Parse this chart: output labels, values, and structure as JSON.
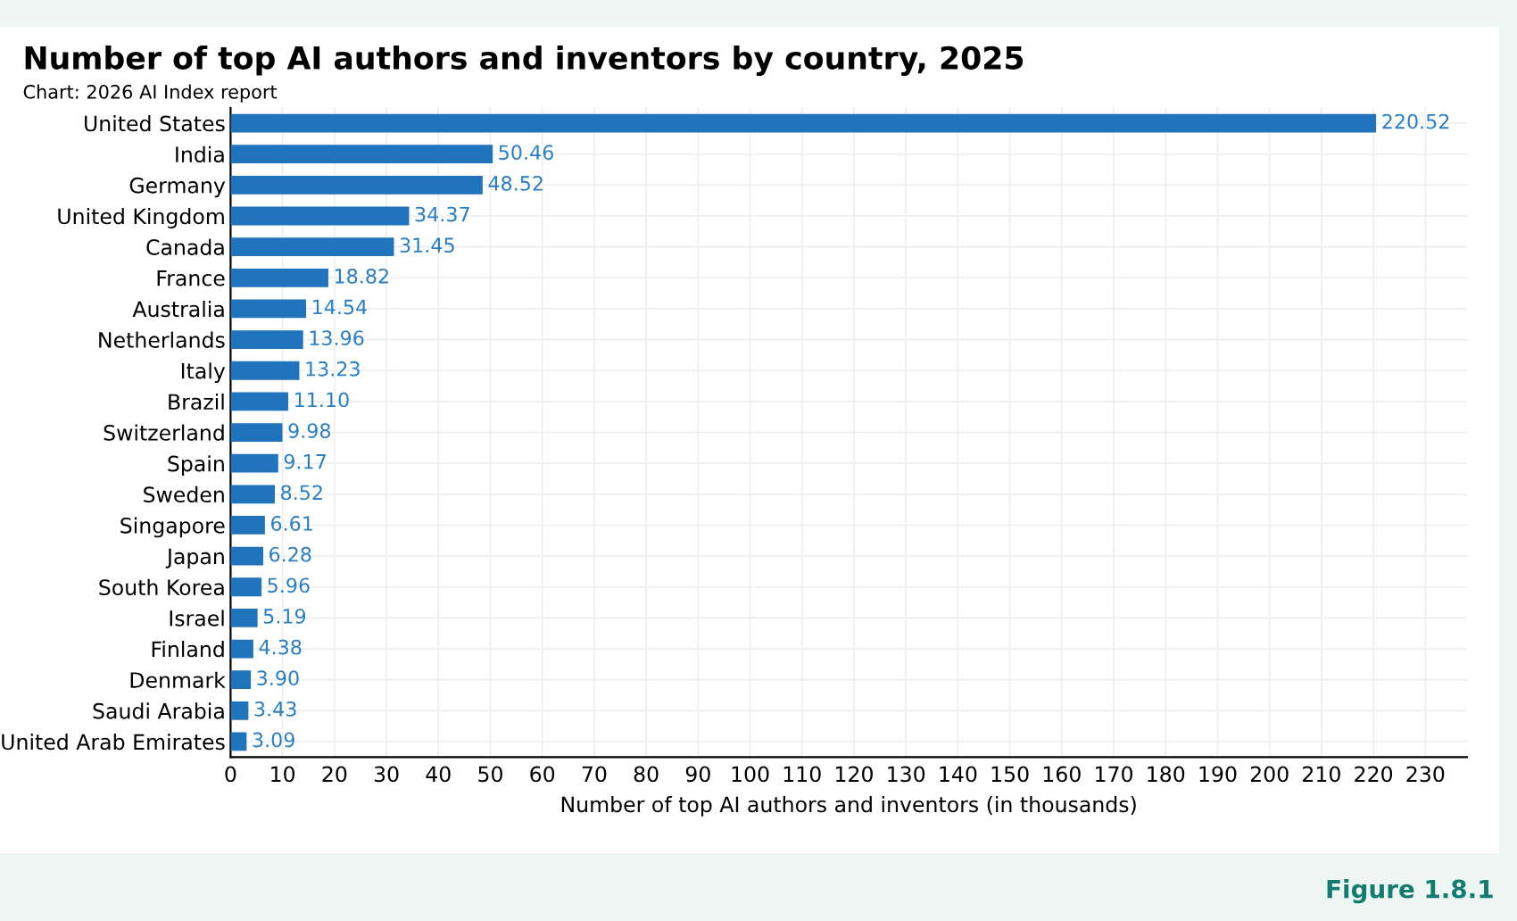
{
  "chart_data": {
    "type": "bar",
    "orientation": "horizontal",
    "title": "Number of top AI authors and inventors by country, 2025",
    "subtitle": "Chart: 2026 AI Index report",
    "xlabel": "Number of top AI authors and inventors (in thousands)",
    "categories": [
      "United States",
      "India",
      "Germany",
      "United Kingdom",
      "Canada",
      "France",
      "Australia",
      "Netherlands",
      "Italy",
      "Brazil",
      "Switzerland",
      "Spain",
      "Sweden",
      "Singapore",
      "Japan",
      "South Korea",
      "Israel",
      "Finland",
      "Denmark",
      "Saudi Arabia",
      "United Arab Emirates"
    ],
    "values": [
      220.52,
      50.46,
      48.52,
      34.37,
      31.45,
      18.82,
      14.54,
      13.96,
      13.23,
      11.1,
      9.98,
      9.17,
      8.52,
      6.61,
      6.28,
      5.96,
      5.19,
      4.38,
      3.9,
      3.43,
      3.09
    ],
    "value_labels": [
      "220.52",
      "50.46",
      "48.52",
      "34.37",
      "31.45",
      "18.82",
      "14.54",
      "13.96",
      "13.23",
      "11.10",
      "9.98",
      "9.17",
      "8.52",
      "6.61",
      "6.28",
      "5.96",
      "5.19",
      "4.38",
      "3.90",
      "3.43",
      "3.09"
    ],
    "color": "#1f74bb",
    "xlim": [
      0,
      238
    ],
    "xticks": [
      0,
      10,
      20,
      30,
      40,
      50,
      60,
      70,
      80,
      90,
      100,
      110,
      120,
      130,
      140,
      150,
      160,
      170,
      180,
      190,
      200,
      210,
      220,
      230
    ],
    "grid": true,
    "legend": false,
    "annotations": [
      "Figure 1.8.1"
    ]
  }
}
